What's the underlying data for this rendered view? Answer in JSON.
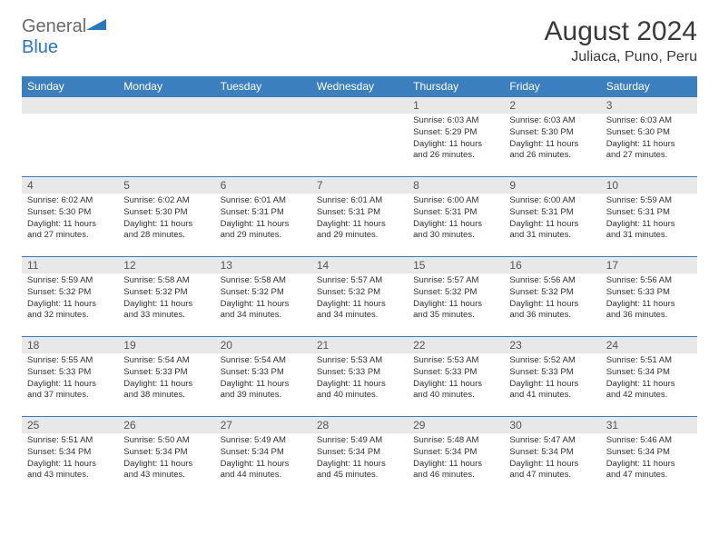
{
  "brand": {
    "general": "General",
    "blue": "Blue"
  },
  "title": "August 2024",
  "location": "Juliaca, Puno, Peru",
  "colors": {
    "header_bg": "#3b7fbf",
    "header_text": "#ffffff",
    "daynum_bg": "#e8e8e8",
    "daynum_text": "#555555",
    "body_text": "#333333",
    "row_border": "#3b7fbf",
    "logo_blue": "#2a77bb",
    "logo_gray": "#6a6a6a"
  },
  "typography": {
    "title_fontsize": 30,
    "location_fontsize": 16,
    "dayhead_fontsize": 12,
    "daynum_fontsize": 12,
    "content_fontsize": 9.5
  },
  "day_names": [
    "Sunday",
    "Monday",
    "Tuesday",
    "Wednesday",
    "Thursday",
    "Friday",
    "Saturday"
  ],
  "weeks": [
    [
      null,
      null,
      null,
      null,
      {
        "n": "1",
        "sr": "6:03 AM",
        "ss": "5:29 PM",
        "dl": "11 hours and 26 minutes."
      },
      {
        "n": "2",
        "sr": "6:03 AM",
        "ss": "5:30 PM",
        "dl": "11 hours and 26 minutes."
      },
      {
        "n": "3",
        "sr": "6:03 AM",
        "ss": "5:30 PM",
        "dl": "11 hours and 27 minutes."
      }
    ],
    [
      {
        "n": "4",
        "sr": "6:02 AM",
        "ss": "5:30 PM",
        "dl": "11 hours and 27 minutes."
      },
      {
        "n": "5",
        "sr": "6:02 AM",
        "ss": "5:30 PM",
        "dl": "11 hours and 28 minutes."
      },
      {
        "n": "6",
        "sr": "6:01 AM",
        "ss": "5:31 PM",
        "dl": "11 hours and 29 minutes."
      },
      {
        "n": "7",
        "sr": "6:01 AM",
        "ss": "5:31 PM",
        "dl": "11 hours and 29 minutes."
      },
      {
        "n": "8",
        "sr": "6:00 AM",
        "ss": "5:31 PM",
        "dl": "11 hours and 30 minutes."
      },
      {
        "n": "9",
        "sr": "6:00 AM",
        "ss": "5:31 PM",
        "dl": "11 hours and 31 minutes."
      },
      {
        "n": "10",
        "sr": "5:59 AM",
        "ss": "5:31 PM",
        "dl": "11 hours and 31 minutes."
      }
    ],
    [
      {
        "n": "11",
        "sr": "5:59 AM",
        "ss": "5:32 PM",
        "dl": "11 hours and 32 minutes."
      },
      {
        "n": "12",
        "sr": "5:58 AM",
        "ss": "5:32 PM",
        "dl": "11 hours and 33 minutes."
      },
      {
        "n": "13",
        "sr": "5:58 AM",
        "ss": "5:32 PM",
        "dl": "11 hours and 34 minutes."
      },
      {
        "n": "14",
        "sr": "5:57 AM",
        "ss": "5:32 PM",
        "dl": "11 hours and 34 minutes."
      },
      {
        "n": "15",
        "sr": "5:57 AM",
        "ss": "5:32 PM",
        "dl": "11 hours and 35 minutes."
      },
      {
        "n": "16",
        "sr": "5:56 AM",
        "ss": "5:32 PM",
        "dl": "11 hours and 36 minutes."
      },
      {
        "n": "17",
        "sr": "5:56 AM",
        "ss": "5:33 PM",
        "dl": "11 hours and 36 minutes."
      }
    ],
    [
      {
        "n": "18",
        "sr": "5:55 AM",
        "ss": "5:33 PM",
        "dl": "11 hours and 37 minutes."
      },
      {
        "n": "19",
        "sr": "5:54 AM",
        "ss": "5:33 PM",
        "dl": "11 hours and 38 minutes."
      },
      {
        "n": "20",
        "sr": "5:54 AM",
        "ss": "5:33 PM",
        "dl": "11 hours and 39 minutes."
      },
      {
        "n": "21",
        "sr": "5:53 AM",
        "ss": "5:33 PM",
        "dl": "11 hours and 40 minutes."
      },
      {
        "n": "22",
        "sr": "5:53 AM",
        "ss": "5:33 PM",
        "dl": "11 hours and 40 minutes."
      },
      {
        "n": "23",
        "sr": "5:52 AM",
        "ss": "5:33 PM",
        "dl": "11 hours and 41 minutes."
      },
      {
        "n": "24",
        "sr": "5:51 AM",
        "ss": "5:34 PM",
        "dl": "11 hours and 42 minutes."
      }
    ],
    [
      {
        "n": "25",
        "sr": "5:51 AM",
        "ss": "5:34 PM",
        "dl": "11 hours and 43 minutes."
      },
      {
        "n": "26",
        "sr": "5:50 AM",
        "ss": "5:34 PM",
        "dl": "11 hours and 43 minutes."
      },
      {
        "n": "27",
        "sr": "5:49 AM",
        "ss": "5:34 PM",
        "dl": "11 hours and 44 minutes."
      },
      {
        "n": "28",
        "sr": "5:49 AM",
        "ss": "5:34 PM",
        "dl": "11 hours and 45 minutes."
      },
      {
        "n": "29",
        "sr": "5:48 AM",
        "ss": "5:34 PM",
        "dl": "11 hours and 46 minutes."
      },
      {
        "n": "30",
        "sr": "5:47 AM",
        "ss": "5:34 PM",
        "dl": "11 hours and 47 minutes."
      },
      {
        "n": "31",
        "sr": "5:46 AM",
        "ss": "5:34 PM",
        "dl": "11 hours and 47 minutes."
      }
    ]
  ],
  "labels": {
    "sunrise": "Sunrise:",
    "sunset": "Sunset:",
    "daylight": "Daylight:"
  }
}
